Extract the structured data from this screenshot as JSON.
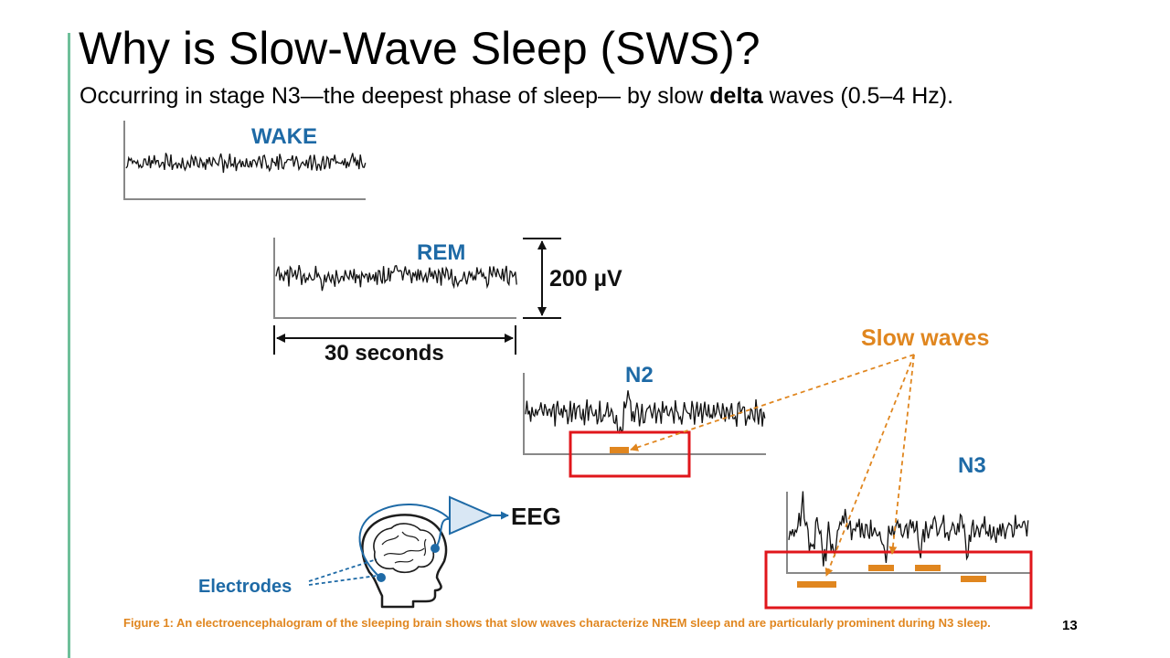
{
  "slide": {
    "title": "Why is Slow-Wave Sleep (SWS)?",
    "subtitle_pre": "Occurring in stage N3—the deepest phase of sleep— by slow ",
    "subtitle_bold": "delta",
    "subtitle_post": " waves (0.5–4 Hz).",
    "page_number": "13"
  },
  "figure": {
    "labels": {
      "wake": "WAKE",
      "rem": "REM",
      "n2": "N2",
      "n3": "N3",
      "amplitude": "200 µV",
      "duration": "30 seconds",
      "slow_waves": "Slow waves",
      "eeg": "EEG",
      "electrodes": "Electrodes"
    },
    "caption": "Figure 1: An electroencephalogram of the sleeping brain shows that slow waves characterize NREM sleep and are particularly prominent during N3 sleep.",
    "colors": {
      "blue": "#1e6aa6",
      "orange": "#e0861f",
      "highlight": "#e0161b",
      "accent": "#6fbf9a"
    }
  }
}
